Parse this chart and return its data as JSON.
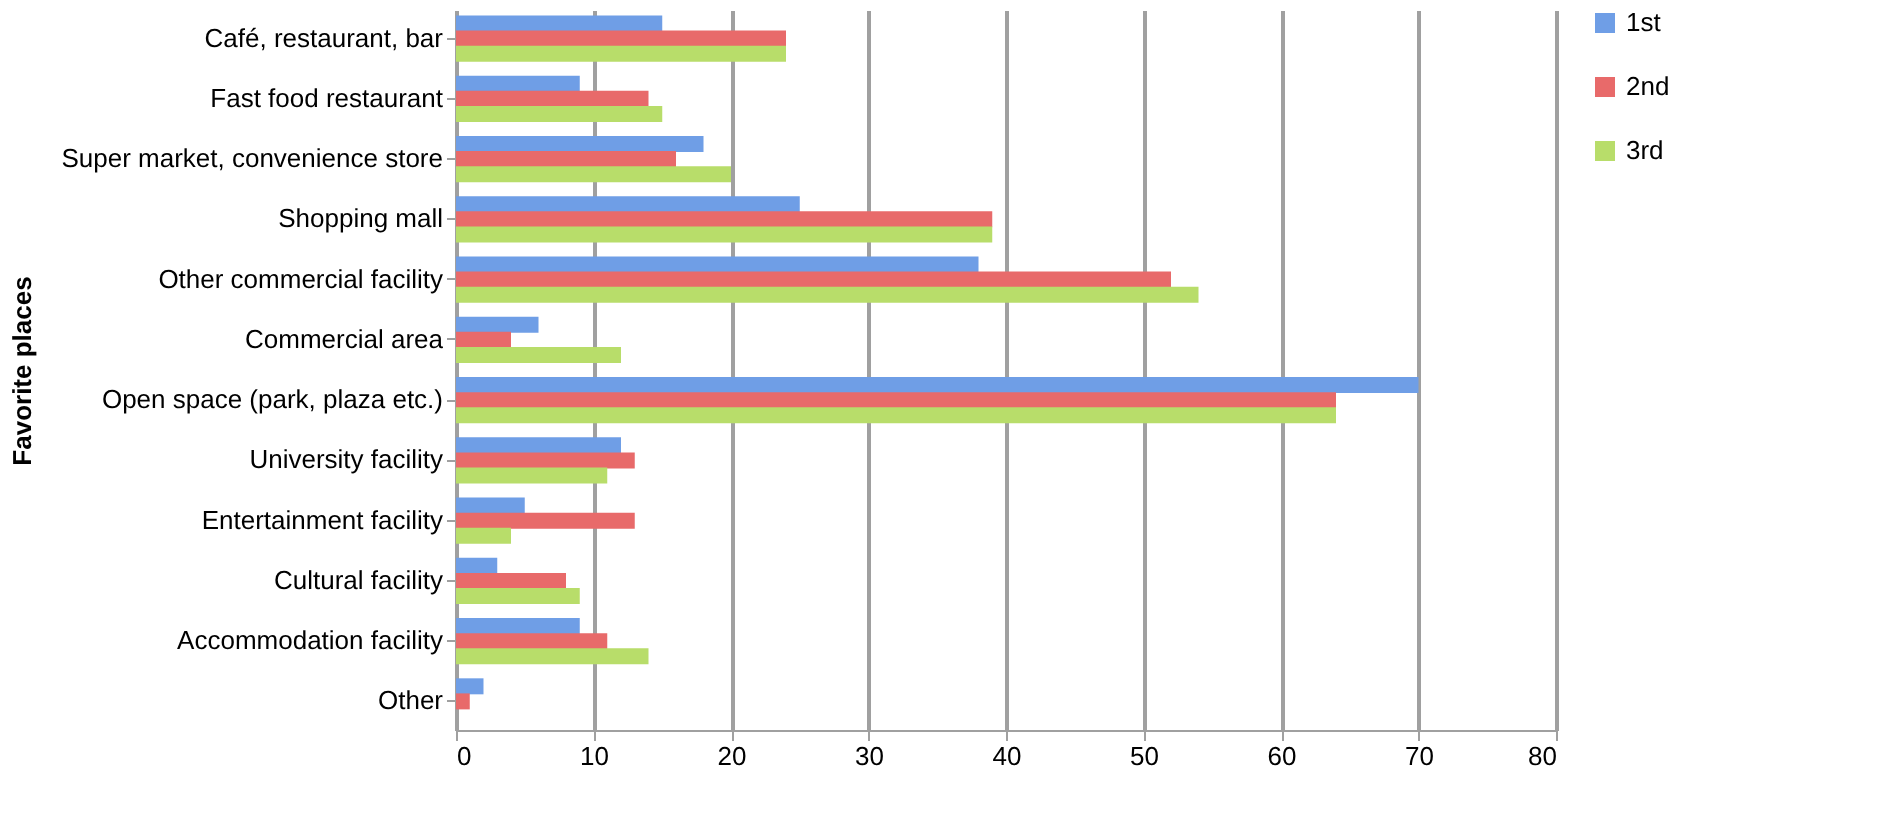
{
  "chart_data": {
    "type": "bar",
    "orientation": "horizontal",
    "ylabel": "Favorite places",
    "categories": [
      "Café, restaurant, bar",
      "Fast food restaurant",
      "Super market, convenience store",
      "Shopping mall",
      "Other commercial facility",
      "Commercial area",
      "Open space (park, plaza etc.)",
      "University facility",
      "Entertainment facility",
      "Cultural facility",
      "Accommodation facility",
      "Other"
    ],
    "series": [
      {
        "name": "1st",
        "color": "#6f9ee6",
        "values": [
          15,
          9,
          18,
          25,
          38,
          6,
          70,
          12,
          5,
          3,
          9,
          2
        ]
      },
      {
        "name": "2nd",
        "color": "#e86a6a",
        "values": [
          24,
          14,
          16,
          39,
          52,
          4,
          64,
          13,
          13,
          8,
          11,
          1
        ]
      },
      {
        "name": "3rd",
        "color": "#b8dd6a",
        "values": [
          24,
          15,
          20,
          39,
          54,
          12,
          64,
          11,
          4,
          9,
          14,
          0
        ]
      }
    ],
    "xlim": [
      0,
      80
    ],
    "xticks": [
      0,
      10,
      20,
      30,
      40,
      50,
      60,
      70,
      80
    ],
    "grid": "x",
    "legend": "right"
  }
}
